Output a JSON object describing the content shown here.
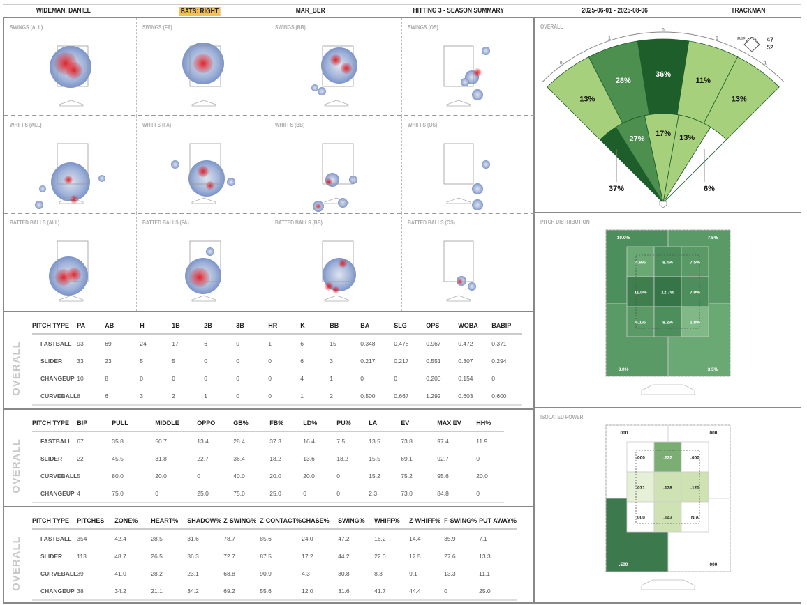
{
  "header": {
    "player": "WIDEMAN, DANIEL",
    "bats": "BATS: RIGHT",
    "team": "MAR_BER",
    "report": "HITTING 3 - SEASON SUMMARY",
    "dates": "2025-06-01 - 2025-08-06",
    "source": "TRACKMAN"
  },
  "colors": {
    "bats_highlight": "#f2c14e",
    "green_dark": "#1d5e2b",
    "green_mid": "#4d8f4f",
    "green_light": "#a6d07b",
    "heat_blue": "#7b93c9",
    "heat_red": "#e0222a"
  },
  "heatmaps": [
    {
      "label": "SWINGS (ALL)"
    },
    {
      "label": "SWINGS (FA)"
    },
    {
      "label": "SWINGS (BB)"
    },
    {
      "label": "SWINGS (OS)"
    },
    {
      "label": "WHIFFS (ALL)"
    },
    {
      "label": "WHIFFS (FA)"
    },
    {
      "label": "WHIFFS (BB)"
    },
    {
      "label": "WHIFFS (OS)"
    },
    {
      "label": "BATTED BALLS (ALL)"
    },
    {
      "label": "BATTED BALLS (FA)"
    },
    {
      "label": "BATTED BALLS (BB)"
    },
    {
      "label": "BATTED BALLS (OS)"
    }
  ],
  "tables": [
    {
      "side": "OVERALL",
      "headers": [
        "PITCH TYPE",
        "PA",
        "AB",
        "H",
        "1B",
        "2B",
        "3B",
        "HR",
        "K",
        "BB",
        "BA",
        "SLG",
        "OPS",
        "WOBA",
        "BABIP"
      ],
      "rows": [
        [
          "FASTBALL",
          "93",
          "69",
          "24",
          "17",
          "6",
          "0",
          "1",
          "6",
          "15",
          "0.348",
          "0.478",
          "0.967",
          "0.472",
          "0.371"
        ],
        [
          "SLIDER",
          "33",
          "23",
          "5",
          "5",
          "0",
          "0",
          "0",
          "6",
          "3",
          "0.217",
          "0.217",
          "0.551",
          "0.307",
          "0.294"
        ],
        [
          "CHANGEUP",
          "10",
          "8",
          "0",
          "0",
          "0",
          "0",
          "0",
          "4",
          "1",
          "0",
          "0",
          "0.200",
          "0.154",
          "0"
        ],
        [
          "CURVEBALL",
          "8",
          "6",
          "3",
          "2",
          "1",
          "0",
          "0",
          "1",
          "2",
          "0.500",
          "0.667",
          "1.292",
          "0.603",
          "0.600"
        ]
      ]
    },
    {
      "side": "OVERALL",
      "headers": [
        "PITCH TYPE",
        "BIP",
        "PULL",
        "MIDDLE",
        "OPPO",
        "GB%",
        "FB%",
        "LD%",
        "PU%",
        "LA",
        "EV",
        "MAX EV",
        "HH%"
      ],
      "rows": [
        [
          "FASTBALL",
          "67",
          "35.8",
          "50.7",
          "13.4",
          "28.4",
          "37.3",
          "16.4",
          "7.5",
          "13.5",
          "73.8",
          "97.4",
          "11.9"
        ],
        [
          "SLIDER",
          "22",
          "45.5",
          "31.8",
          "22.7",
          "36.4",
          "18.2",
          "13.6",
          "18.2",
          "15.5",
          "69.1",
          "92.7",
          "0"
        ],
        [
          "CURVEBALL",
          "5",
          "80.0",
          "20.0",
          "0",
          "40.0",
          "20.0",
          "20.0",
          "0",
          "15.2",
          "75.2",
          "95.6",
          "20.0"
        ],
        [
          "CHANGEUP",
          "4",
          "75.0",
          "0",
          "25.0",
          "75.0",
          "25.0",
          "0",
          "0",
          "2.3",
          "73.0",
          "84.8",
          "0"
        ]
      ]
    },
    {
      "side": "OVERALL",
      "headers": [
        "PITCH TYPE",
        "PITCHES",
        "ZONE%",
        "HEART%",
        "SHADOW%",
        "Z-SWING%",
        "Z-CONTACT%",
        "CHASE%",
        "SWING%",
        "WHIFF%",
        "Z-WHIFF%",
        "F-SWING%",
        "PUT AWAY%"
      ],
      "rows": [
        [
          "FASTBALL",
          "354",
          "42.4",
          "28.5",
          "31.6",
          "78.7",
          "85.6",
          "24.0",
          "47.2",
          "16.2",
          "14.4",
          "35.9",
          "7.1"
        ],
        [
          "SLIDER",
          "113",
          "48.7",
          "26.5",
          "36.3",
          "72.7",
          "87.5",
          "17.2",
          "44.2",
          "22.0",
          "12.5",
          "27.6",
          "13.3"
        ],
        [
          "CURVEBALL",
          "39",
          "41.0",
          "28.2",
          "23.1",
          "68.8",
          "90.9",
          "4.3",
          "30.8",
          "8.3",
          "9.1",
          "13.3",
          "11.1"
        ],
        [
          "CHANGEUP",
          "38",
          "34.2",
          "21.1",
          "34.2",
          "69.2",
          "55.6",
          "12.0",
          "31.6",
          "41.7",
          "44.4",
          "0",
          "25.0"
        ]
      ]
    }
  ],
  "spray": {
    "label": "OVERALL",
    "outer": [
      "13%",
      "28%",
      "36%",
      "11%",
      "13%"
    ],
    "inner": [
      "27%",
      "17%",
      "13%"
    ],
    "foul_left": "37%",
    "foul_right": "6%",
    "hr_counts": [
      "0",
      "1",
      "0",
      "0",
      "1"
    ],
    "bip_label": "BIP",
    "bip_values": [
      "47",
      "52"
    ]
  },
  "pitch_distribution": {
    "label": "PITCH DISTRIBUTION",
    "outer": [
      "10.0%",
      "7.5%",
      "8.0%",
      "3.5%"
    ],
    "inner": [
      "4.9%",
      "8.4%",
      "7.5%",
      "11.0%",
      "12.7%",
      "7.0%",
      "6.1%",
      "8.2%",
      "1.8%"
    ]
  },
  "iso_power": {
    "label": "ISOLATED POWER",
    "outer": [
      ".000",
      ".000",
      ".500",
      ".000"
    ],
    "inner": [
      ".000",
      ".222",
      ".000",
      ".071",
      ".138",
      ".125",
      ".000",
      ".143",
      "N/A"
    ]
  }
}
